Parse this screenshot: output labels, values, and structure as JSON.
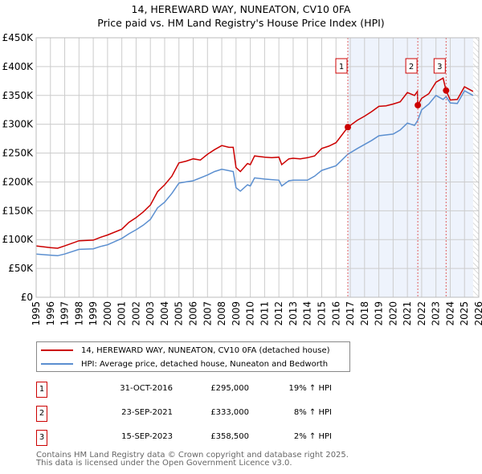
{
  "header": {
    "title": "14, HEREWARD WAY, NUNEATON, CV10 0FA",
    "subtitle": "Price paid vs. HM Land Registry's House Price Index (HPI)"
  },
  "chart_data": {
    "type": "line",
    "xlim": [
      1995,
      2026
    ],
    "ylim": [
      0,
      450000
    ],
    "yticks": [
      0,
      50000,
      100000,
      150000,
      200000,
      250000,
      300000,
      350000,
      400000,
      450000
    ],
    "ytick_labels": [
      "£0",
      "£50K",
      "£100K",
      "£150K",
      "£200K",
      "£250K",
      "£300K",
      "£350K",
      "£400K",
      "£450K"
    ],
    "xticks": [
      1995,
      1996,
      1997,
      1998,
      1999,
      2000,
      2001,
      2002,
      2003,
      2004,
      2005,
      2006,
      2007,
      2008,
      2009,
      2010,
      2011,
      2012,
      2013,
      2014,
      2015,
      2016,
      2017,
      2018,
      2019,
      2020,
      2021,
      2022,
      2023,
      2024,
      2025,
      2026
    ],
    "grid": true,
    "series": [
      {
        "name": "14, HEREWARD WAY, NUNEATON, CV10 0FA (detached house)",
        "color": "#cc0000",
        "x": [
          1995,
          1996,
          1996.5,
          1997,
          1998,
          1999,
          1999.5,
          2000,
          2001,
          2001.5,
          2002,
          2002.5,
          2003,
          2003.5,
          2004,
          2004.5,
          2005,
          2005.5,
          2006,
          2006.5,
          2007,
          2007.5,
          2008,
          2008.5,
          2008.8,
          2009,
          2009.3,
          2009.8,
          2010,
          2010.3,
          2011,
          2011.5,
          2012,
          2012.2,
          2012.7,
          2013,
          2013.5,
          2014,
          2014.5,
          2015,
          2015.5,
          2016,
          2016.83,
          2017.5,
          2018,
          2018.5,
          2019,
          2019.5,
          2020,
          2020.5,
          2021,
          2021.5,
          2021.7,
          2021.73,
          2022,
          2022.5,
          2023,
          2023.5,
          2023.71,
          2024,
          2024.5,
          2025,
          2025.6
        ],
        "y": [
          89,
          86,
          85,
          89,
          98,
          99,
          104,
          108,
          118,
          130,
          138,
          148,
          160,
          183,
          195,
          210,
          233,
          236,
          240,
          238,
          248,
          256,
          263,
          260,
          260,
          225,
          218,
          232,
          230,
          245,
          243,
          242,
          243,
          230,
          240,
          241,
          240,
          242,
          245,
          258,
          262,
          268,
          295,
          307,
          314,
          322,
          331,
          332,
          335,
          339,
          355,
          350,
          357,
          333,
          345,
          353,
          373,
          380,
          358.5,
          342,
          343,
          365,
          357
        ]
      },
      {
        "name": "HPI: Average price, detached house, Nuneaton and Bedworth",
        "color": "#5b8fd0",
        "x": [
          1995,
          1996,
          1996.5,
          1997,
          1998,
          1999,
          1999.5,
          2000,
          2001,
          2001.5,
          2002,
          2002.5,
          2003,
          2003.5,
          2004,
          2004.5,
          2005,
          2005.5,
          2006,
          2007,
          2007.5,
          2008,
          2008.8,
          2009,
          2009.3,
          2009.8,
          2010,
          2010.3,
          2011,
          2011.5,
          2012,
          2012.2,
          2012.7,
          2013,
          2014,
          2014.5,
          2015,
          2016,
          2016.83,
          2017.5,
          2018,
          2018.5,
          2019,
          2020,
          2020.5,
          2021,
          2021.5,
          2021.73,
          2022,
          2022.5,
          2023,
          2023.5,
          2023.71,
          2024,
          2024.5,
          2025,
          2025.6
        ],
        "y": [
          75,
          73,
          72,
          75,
          83,
          84,
          88,
          91,
          102,
          110,
          117,
          125,
          135,
          155,
          165,
          180,
          198,
          200,
          202,
          212,
          218,
          222,
          218,
          190,
          184,
          195,
          193,
          207,
          205,
          204,
          203,
          193,
          202,
          203,
          203,
          210,
          220,
          228,
          248,
          258,
          265,
          272,
          280,
          283,
          290,
          302,
          298,
          307,
          325,
          335,
          350,
          343,
          348,
          337,
          336,
          358,
          350
        ]
      }
    ],
    "y_units": "thousands GBP",
    "sales": [
      {
        "label": "1",
        "x": 2016.83,
        "price": 295000,
        "date": "31-OCT-2016",
        "price_text": "£295,000",
        "hpi_text": "19% ↑ HPI"
      },
      {
        "label": "2",
        "x": 2021.73,
        "price": 333000,
        "date": "23-SEP-2021",
        "price_text": "£333,000",
        "hpi_text": "8% ↑ HPI"
      },
      {
        "label": "3",
        "x": 2023.71,
        "price": 358500,
        "date": "15-SEP-2023",
        "price_text": "£358,500",
        "hpi_text": "2% ↑ HPI"
      }
    ],
    "shaded_range": [
      2016.83,
      2025.6
    ],
    "hatched_range": [
      2025.6,
      2026
    ],
    "legend_position": "bottom"
  },
  "footer": {
    "line1": "Contains HM Land Registry data © Crown copyright and database right 2025.",
    "line2": "This data is licensed under the Open Government Licence v3.0."
  }
}
